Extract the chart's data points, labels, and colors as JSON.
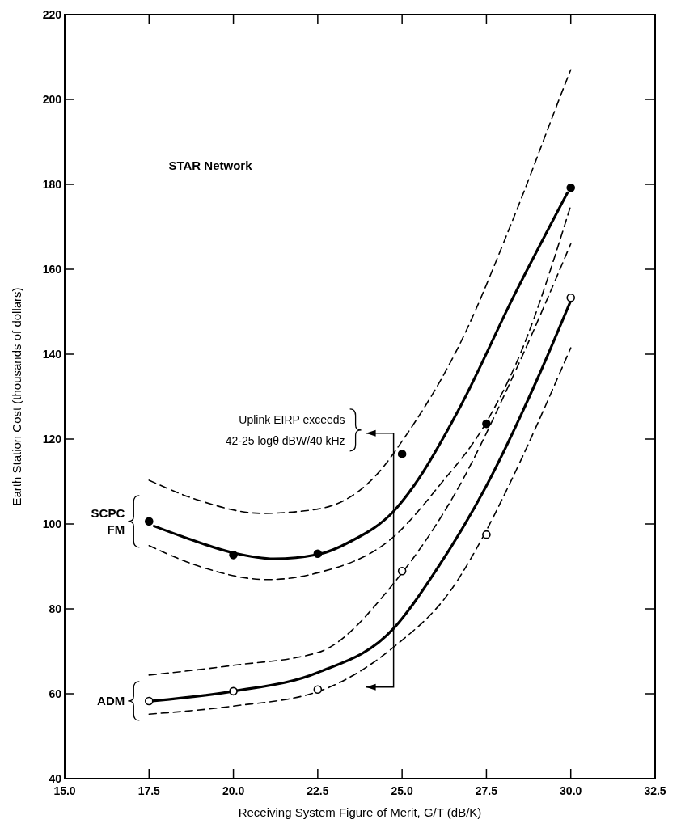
{
  "chart_data": {
    "type": "line",
    "title": "STAR Network",
    "xlabel": "Receiving System Figure of Merit, G/T (dB/K)",
    "ylabel": "Earth Station Cost (thousands of dollars)",
    "xlim": [
      15,
      32.5
    ],
    "ylim": [
      40,
      220
    ],
    "xticks": [
      {
        "value": 15,
        "label": "15.0"
      },
      {
        "value": 17.5,
        "label": "17.5"
      },
      {
        "value": 20,
        "label": "20.0"
      },
      {
        "value": 22.5,
        "label": "22.5"
      },
      {
        "value": 25,
        "label": "25.0"
      },
      {
        "value": 27.5,
        "label": "27.5"
      },
      {
        "value": 30,
        "label": "30.0"
      },
      {
        "value": 32.5,
        "label": "32.5"
      }
    ],
    "yticks": [
      40,
      60,
      80,
      100,
      120,
      140,
      160,
      180,
      200,
      220
    ],
    "annotations": [
      "Uplink EIRP exceeds\n42-25 logθ dBW/40 kHz"
    ],
    "series": [
      {
        "color": "#000000",
        "line_style": "solid",
        "x": [
          17.65,
          18.5,
          20,
          21.2,
          22.5,
          23.5,
          24.75,
          25.35,
          26.75,
          28.3,
          29.9
        ],
        "values": [
          99.5,
          97,
          93.2,
          91.8,
          92.8,
          96,
          103,
          109,
          128,
          153.5,
          178
        ]
      },
      {
        "color": "#000000",
        "line_style": "dashed",
        "x": [
          17.5,
          19,
          20.85,
          22.5,
          24.4,
          25,
          26.75,
          28.3,
          29.9,
          30
        ],
        "values": [
          110.3,
          105.5,
          102.5,
          103.5,
          113,
          119.5,
          143,
          172,
          205,
          207
        ]
      },
      {
        "color": "#000000",
        "line_style": "dashed",
        "x": [
          17.5,
          19,
          21,
          22.5,
          24.75,
          26.1,
          27.5,
          28.5,
          30
        ],
        "values": [
          94.9,
          90,
          86.9,
          88.5,
          97,
          109,
          124,
          140,
          175
        ]
      },
      {
        "color": "#000000",
        "line_style": "solid",
        "x": [
          17.6,
          20,
          22.5,
          24.75,
          26,
          27.5,
          29,
          30
        ],
        "values": [
          58.3,
          60.6,
          65,
          75.4,
          89,
          109,
          134,
          152.6
        ]
      },
      {
        "color": "#000000",
        "line_style": "dashed",
        "x": [
          17.5,
          20,
          22.5,
          24.75,
          26.7,
          28.3,
          30
        ],
        "values": [
          64.4,
          66.7,
          69.7,
          86,
          109,
          135,
          166
        ]
      },
      {
        "color": "#000000",
        "line_style": "dashed",
        "x": [
          17.5,
          20,
          22.5,
          24.75,
          26.5,
          27.5,
          28.1,
          30
        ],
        "values": [
          55.2,
          57.1,
          60.5,
          71,
          85,
          98.5,
          108,
          141.5
        ]
      },
      {
        "type": "scatter",
        "name": "SCPC FM",
        "marker": "circle",
        "color": "#000000",
        "x": [
          17.5,
          20,
          22.5,
          25,
          27.5,
          30
        ],
        "values": [
          100.6,
          92.7,
          93.0,
          116.5,
          123.6,
          179.2
        ]
      },
      {
        "type": "scatter",
        "name": "ADM",
        "marker": "circle",
        "color": "#ffffff",
        "x": [
          17.5,
          20,
          22.5,
          25,
          27.5,
          30
        ],
        "values": [
          58.3,
          60.6,
          61.0,
          88.9,
          97.5,
          153.3
        ]
      }
    ]
  }
}
